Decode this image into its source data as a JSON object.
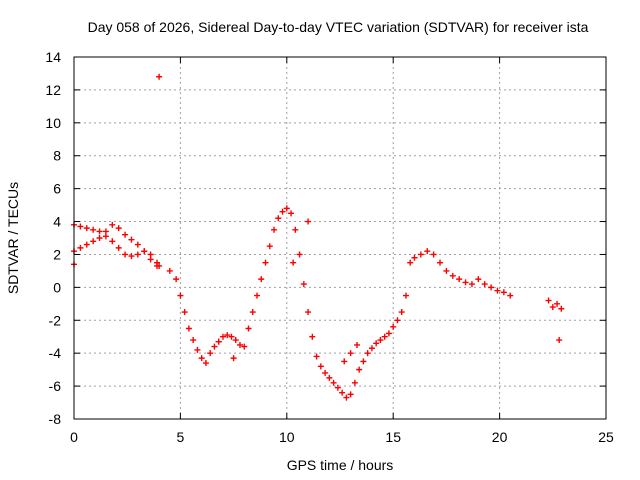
{
  "chart_data": {
    "type": "scatter",
    "title": "Day 058 of 2026, Sidereal Day-to-day VTEC variation (SDTVAR) for receiver ista",
    "xlabel": "GPS time / hours",
    "ylabel": "SDTVAR / TECUs",
    "xlim": [
      0,
      25
    ],
    "ylim": [
      -8,
      14
    ],
    "xticks": [
      0,
      5,
      10,
      15,
      20,
      25
    ],
    "yticks": [
      -8,
      -6,
      -4,
      -2,
      0,
      2,
      4,
      6,
      8,
      10,
      12,
      14
    ],
    "grid": true,
    "marker": "+",
    "colors": {
      "series": "#ff0000",
      "grid": "#a0a0a0",
      "axis": "#000000"
    },
    "series": [
      {
        "name": "SDTVAR",
        "x": [
          0.0,
          0.3,
          0.6,
          0.9,
          1.2,
          1.5,
          1.8,
          2.1,
          2.4,
          2.7,
          3.0,
          3.3,
          3.6,
          3.9,
          4.0,
          0.0,
          0.3,
          0.6,
          0.9,
          1.2,
          1.5,
          1.8,
          2.1,
          2.4,
          2.7,
          3.0,
          3.3,
          3.6,
          3.9,
          0.0,
          4.0,
          4.5,
          4.8,
          5.0,
          5.2,
          5.4,
          5.6,
          5.8,
          6.0,
          6.2,
          6.4,
          6.6,
          6.8,
          7.0,
          7.2,
          7.4,
          7.6,
          7.8,
          8.0,
          8.2,
          8.4,
          8.6,
          8.8,
          9.0,
          9.2,
          9.4,
          9.6,
          9.8,
          10.0,
          10.2,
          10.4,
          10.6,
          10.8,
          11.0,
          11.2,
          11.4,
          11.6,
          11.8,
          12.0,
          12.2,
          12.4,
          12.6,
          12.8,
          13.0,
          13.2,
          13.4,
          13.6,
          13.8,
          14.0,
          14.2,
          14.4,
          14.6,
          14.8,
          15.0,
          15.2,
          15.4,
          15.6,
          15.8,
          16.0,
          16.3,
          16.6,
          16.9,
          17.2,
          17.5,
          17.8,
          18.1,
          18.4,
          18.7,
          19.0,
          19.3,
          19.6,
          19.9,
          20.2,
          20.5,
          22.3,
          22.5,
          22.7,
          22.9,
          22.8,
          7.5,
          6.8,
          10.3,
          11.0,
          12.7,
          13.0,
          13.3
        ],
        "y": [
          3.8,
          3.7,
          3.6,
          3.5,
          3.4,
          3.4,
          3.8,
          3.6,
          3.2,
          2.9,
          2.6,
          2.2,
          1.7,
          1.3,
          12.8,
          2.2,
          2.4,
          2.6,
          2.8,
          3.0,
          3.1,
          2.8,
          2.4,
          2.0,
          1.9,
          2.0,
          2.2,
          2.0,
          1.5,
          1.4,
          1.3,
          1.0,
          0.5,
          -0.5,
          -1.5,
          -2.5,
          -3.2,
          -3.8,
          -4.3,
          -4.6,
          -4.0,
          -3.6,
          -3.3,
          -3.0,
          -2.9,
          -3.0,
          -3.2,
          -3.5,
          -3.6,
          -2.5,
          -1.5,
          -0.5,
          0.5,
          1.5,
          2.5,
          3.5,
          4.2,
          4.6,
          4.8,
          4.5,
          3.5,
          2.0,
          0.2,
          -1.5,
          -3.0,
          -4.2,
          -4.8,
          -5.2,
          -5.5,
          -5.8,
          -6.1,
          -6.4,
          -6.7,
          -6.5,
          -5.8,
          -5.0,
          -4.5,
          -4.0,
          -3.7,
          -3.4,
          -3.2,
          -3.0,
          -2.8,
          -2.4,
          -2.0,
          -1.5,
          -0.5,
          1.5,
          1.8,
          2.0,
          2.2,
          2.0,
          1.5,
          1.0,
          0.7,
          0.5,
          0.3,
          0.2,
          0.5,
          0.2,
          0.0,
          -0.2,
          -0.3,
          -0.5,
          -0.8,
          -1.2,
          -1.0,
          -1.3,
          -3.2,
          -4.3,
          -3.3,
          1.5,
          4.0,
          -4.5,
          -4.0,
          -3.5
        ]
      }
    ]
  }
}
